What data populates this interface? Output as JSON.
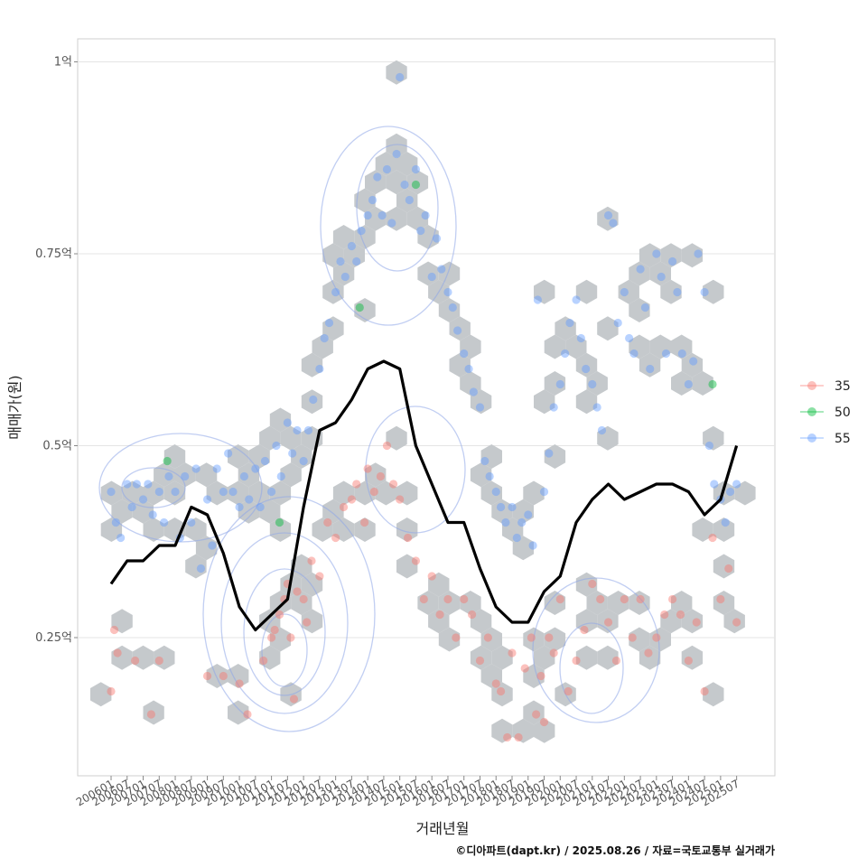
{
  "chart_data": {
    "type": "scatter",
    "xlabel": "거래년월",
    "ylabel": "매매가(원)",
    "caption": "©디아파트(dapt.kr) / 2025.08.26 / 자료=국토교통부 실거래가",
    "y_ticks": [
      {
        "value": 0.25,
        "label": "0.25억"
      },
      {
        "value": 0.5,
        "label": "0.5억"
      },
      {
        "value": 0.75,
        "label": "0.75억"
      },
      {
        "value": 1.0,
        "label": "1억"
      }
    ],
    "ylim": [
      0.07,
      1.03
    ],
    "x_ticks": [
      "200601",
      "200607",
      "200701",
      "200707",
      "200801",
      "200807",
      "200901",
      "200907",
      "201001",
      "201007",
      "201101",
      "201107",
      "201201",
      "201207",
      "201301",
      "201307",
      "201401",
      "201407",
      "201501",
      "201507",
      "201601",
      "201607",
      "201701",
      "201707",
      "201801",
      "201807",
      "201901",
      "201907",
      "202001",
      "202007",
      "202101",
      "202107",
      "202201",
      "202207",
      "202301",
      "202307",
      "202401",
      "202407",
      "202501",
      "202507"
    ],
    "legend": {
      "placement": "right",
      "entries": [
        {
          "name": "35",
          "color": "#F8766D"
        },
        {
          "name": "50",
          "color": "#00BA38"
        },
        {
          "name": "55",
          "color": "#619CFF"
        }
      ]
    },
    "hex_color": "#c5c9cc",
    "trend_color": "#000000",
    "trend": {
      "x": [
        0,
        1,
        2,
        3,
        4,
        5,
        6,
        7,
        8,
        9,
        10,
        11,
        12,
        13,
        14,
        15,
        16,
        17,
        18,
        19,
        20,
        21,
        22,
        23,
        24,
        25,
        26,
        27,
        28,
        29,
        30,
        31,
        32,
        33,
        34,
        35,
        36,
        37,
        38,
        39
      ],
      "values": [
        0.32,
        0.35,
        0.35,
        0.37,
        0.37,
        0.42,
        0.41,
        0.36,
        0.29,
        0.26,
        0.28,
        0.3,
        0.42,
        0.52,
        0.53,
        0.56,
        0.6,
        0.61,
        0.6,
        0.5,
        0.45,
        0.4,
        0.4,
        0.34,
        0.29,
        0.27,
        0.27,
        0.31,
        0.33,
        0.4,
        0.43,
        0.45,
        0.43,
        0.44,
        0.45,
        0.45,
        0.44,
        0.41,
        0.43,
        0.5
      ]
    },
    "series": [
      {
        "name": "35",
        "points": [
          [
            0,
            0.18
          ],
          [
            0.2,
            0.26
          ],
          [
            0.4,
            0.23
          ],
          [
            1.5,
            0.22
          ],
          [
            2.5,
            0.15
          ],
          [
            3,
            0.22
          ],
          [
            6,
            0.2
          ],
          [
            7,
            0.2
          ],
          [
            8,
            0.19
          ],
          [
            8.5,
            0.15
          ],
          [
            9.5,
            0.22
          ],
          [
            10,
            0.25
          ],
          [
            10.2,
            0.26
          ],
          [
            10.5,
            0.28
          ],
          [
            10.8,
            0.3
          ],
          [
            11,
            0.32
          ],
          [
            11.2,
            0.25
          ],
          [
            11.4,
            0.17
          ],
          [
            11.6,
            0.31
          ],
          [
            12,
            0.3
          ],
          [
            12.2,
            0.27
          ],
          [
            12.5,
            0.35
          ],
          [
            13,
            0.33
          ],
          [
            13.5,
            0.4
          ],
          [
            14,
            0.38
          ],
          [
            14.5,
            0.42
          ],
          [
            15,
            0.43
          ],
          [
            15.3,
            0.45
          ],
          [
            15.8,
            0.4
          ],
          [
            16,
            0.47
          ],
          [
            16.4,
            0.44
          ],
          [
            16.8,
            0.46
          ],
          [
            17.2,
            0.5
          ],
          [
            17.6,
            0.45
          ],
          [
            18,
            0.43
          ],
          [
            18.5,
            0.38
          ],
          [
            19,
            0.35
          ],
          [
            19.5,
            0.3
          ],
          [
            20,
            0.33
          ],
          [
            20.5,
            0.28
          ],
          [
            21,
            0.3
          ],
          [
            21.5,
            0.25
          ],
          [
            22,
            0.3
          ],
          [
            22.5,
            0.28
          ],
          [
            23,
            0.22
          ],
          [
            23.5,
            0.25
          ],
          [
            24,
            0.19
          ],
          [
            24.3,
            0.18
          ],
          [
            24.7,
            0.12
          ],
          [
            25,
            0.23
          ],
          [
            25.4,
            0.12
          ],
          [
            25.8,
            0.21
          ],
          [
            26.2,
            0.25
          ],
          [
            26.5,
            0.15
          ],
          [
            26.8,
            0.2
          ],
          [
            27,
            0.14
          ],
          [
            27.3,
            0.25
          ],
          [
            27.6,
            0.23
          ],
          [
            28,
            0.3
          ],
          [
            28.5,
            0.18
          ],
          [
            29,
            0.22
          ],
          [
            29.5,
            0.26
          ],
          [
            30,
            0.32
          ],
          [
            30.5,
            0.3
          ],
          [
            31,
            0.27
          ],
          [
            31.5,
            0.22
          ],
          [
            32,
            0.3
          ],
          [
            32.5,
            0.25
          ],
          [
            33,
            0.3
          ],
          [
            33.5,
            0.23
          ],
          [
            34,
            0.25
          ],
          [
            34.5,
            0.28
          ],
          [
            35,
            0.3
          ],
          [
            35.5,
            0.28
          ],
          [
            36,
            0.22
          ],
          [
            36.5,
            0.27
          ],
          [
            37,
            0.18
          ],
          [
            37.5,
            0.38
          ],
          [
            38,
            0.3
          ],
          [
            38.5,
            0.34
          ],
          [
            39,
            0.27
          ]
        ]
      },
      {
        "name": "50",
        "points": [
          [
            3.5,
            0.48
          ],
          [
            10.5,
            0.4
          ],
          [
            15.5,
            0.68
          ],
          [
            19,
            0.84
          ],
          [
            37.5,
            0.58
          ]
        ]
      },
      {
        "name": "55",
        "points": [
          [
            0,
            0.44
          ],
          [
            0.3,
            0.4
          ],
          [
            0.6,
            0.38
          ],
          [
            1,
            0.45
          ],
          [
            1.3,
            0.42
          ],
          [
            1.6,
            0.45
          ],
          [
            2,
            0.43
          ],
          [
            2.3,
            0.45
          ],
          [
            2.6,
            0.41
          ],
          [
            3,
            0.44
          ],
          [
            3.3,
            0.4
          ],
          [
            3.6,
            0.46
          ],
          [
            4,
            0.44
          ],
          [
            4.3,
            0.38
          ],
          [
            4.6,
            0.46
          ],
          [
            5,
            0.4
          ],
          [
            5.3,
            0.47
          ],
          [
            5.6,
            0.34
          ],
          [
            6,
            0.43
          ],
          [
            6.3,
            0.37
          ],
          [
            6.6,
            0.47
          ],
          [
            7,
            0.44
          ],
          [
            7.3,
            0.49
          ],
          [
            7.6,
            0.44
          ],
          [
            8,
            0.42
          ],
          [
            8.3,
            0.46
          ],
          [
            8.6,
            0.43
          ],
          [
            9,
            0.47
          ],
          [
            9.3,
            0.42
          ],
          [
            9.6,
            0.48
          ],
          [
            10,
            0.44
          ],
          [
            10.3,
            0.5
          ],
          [
            10.6,
            0.46
          ],
          [
            11,
            0.53
          ],
          [
            11.3,
            0.49
          ],
          [
            11.6,
            0.52
          ],
          [
            12,
            0.48
          ],
          [
            12.3,
            0.52
          ],
          [
            12.6,
            0.56
          ],
          [
            13,
            0.6
          ],
          [
            13.3,
            0.64
          ],
          [
            13.6,
            0.66
          ],
          [
            14,
            0.7
          ],
          [
            14.3,
            0.74
          ],
          [
            14.6,
            0.72
          ],
          [
            15,
            0.76
          ],
          [
            15.3,
            0.74
          ],
          [
            15.6,
            0.78
          ],
          [
            16,
            0.8
          ],
          [
            16.3,
            0.82
          ],
          [
            16.6,
            0.85
          ],
          [
            16.9,
            0.8
          ],
          [
            17.2,
            0.86
          ],
          [
            17.5,
            0.79
          ],
          [
            17.8,
            0.88
          ],
          [
            18,
            0.98
          ],
          [
            18.3,
            0.84
          ],
          [
            18.6,
            0.82
          ],
          [
            19,
            0.86
          ],
          [
            19.3,
            0.78
          ],
          [
            19.6,
            0.8
          ],
          [
            20,
            0.72
          ],
          [
            20.3,
            0.77
          ],
          [
            20.6,
            0.73
          ],
          [
            21,
            0.7
          ],
          [
            21.3,
            0.68
          ],
          [
            21.6,
            0.65
          ],
          [
            22,
            0.62
          ],
          [
            22.3,
            0.6
          ],
          [
            22.6,
            0.57
          ],
          [
            23,
            0.55
          ],
          [
            23.3,
            0.48
          ],
          [
            23.6,
            0.46
          ],
          [
            24,
            0.44
          ],
          [
            24.3,
            0.42
          ],
          [
            24.6,
            0.4
          ],
          [
            25,
            0.42
          ],
          [
            25.3,
            0.38
          ],
          [
            25.6,
            0.4
          ],
          [
            26,
            0.41
          ],
          [
            26.3,
            0.37
          ],
          [
            26.6,
            0.69
          ],
          [
            27,
            0.44
          ],
          [
            27.3,
            0.49
          ],
          [
            27.6,
            0.55
          ],
          [
            28,
            0.58
          ],
          [
            28.3,
            0.62
          ],
          [
            28.6,
            0.66
          ],
          [
            29,
            0.69
          ],
          [
            29.3,
            0.64
          ],
          [
            29.6,
            0.6
          ],
          [
            30,
            0.58
          ],
          [
            30.3,
            0.55
          ],
          [
            30.6,
            0.52
          ],
          [
            31,
            0.8
          ],
          [
            31.3,
            0.79
          ],
          [
            31.6,
            0.66
          ],
          [
            32,
            0.7
          ],
          [
            32.3,
            0.64
          ],
          [
            32.6,
            0.62
          ],
          [
            33,
            0.73
          ],
          [
            33.3,
            0.68
          ],
          [
            33.6,
            0.6
          ],
          [
            34,
            0.75
          ],
          [
            34.3,
            0.72
          ],
          [
            34.6,
            0.62
          ],
          [
            35,
            0.74
          ],
          [
            35.3,
            0.7
          ],
          [
            35.6,
            0.62
          ],
          [
            36,
            0.58
          ],
          [
            36.3,
            0.61
          ],
          [
            36.6,
            0.75
          ],
          [
            37,
            0.7
          ],
          [
            37.3,
            0.5
          ],
          [
            37.6,
            0.45
          ],
          [
            38,
            0.43
          ],
          [
            38.3,
            0.4
          ],
          [
            38.6,
            0.44
          ],
          [
            39,
            0.45
          ]
        ]
      }
    ]
  }
}
